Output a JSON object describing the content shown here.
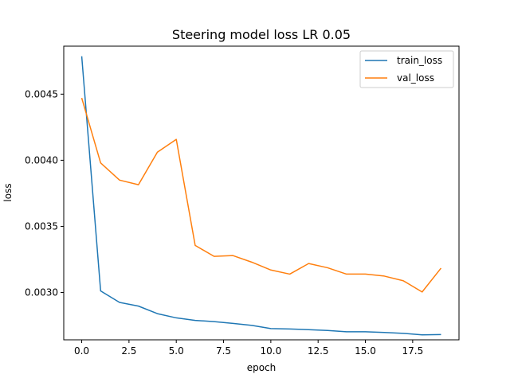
{
  "chart_data": {
    "type": "line",
    "title": "Steering model loss LR 0.05",
    "xlabel": "epoch",
    "ylabel": "loss",
    "xlim": [
      -0.95,
      19.95
    ],
    "ylim": [
      0.002642,
      0.004863
    ],
    "xticks": [
      0.0,
      2.5,
      5.0,
      7.5,
      10.0,
      12.5,
      15.0,
      17.5
    ],
    "xtick_labels": [
      "0.0",
      "2.5",
      "5.0",
      "7.5",
      "10.0",
      "12.5",
      "15.0",
      "17.5"
    ],
    "yticks": [
      0.003,
      0.0035,
      0.004,
      0.0045
    ],
    "ytick_labels": [
      "0.0030",
      "0.0035",
      "0.0040",
      "0.0045"
    ],
    "grid": false,
    "legend_position": "top-right",
    "x": [
      0,
      1,
      2,
      3,
      4,
      5,
      6,
      7,
      8,
      9,
      10,
      11,
      12,
      13,
      14,
      15,
      16,
      17,
      18,
      19
    ],
    "series": [
      {
        "name": "train_loss",
        "color": "#1f77b4",
        "values": [
          0.004787,
          0.003012,
          0.002925,
          0.002897,
          0.00284,
          0.002808,
          0.002789,
          0.00278,
          0.002766,
          0.002751,
          0.002727,
          0.002724,
          0.002719,
          0.002713,
          0.002703,
          0.002703,
          0.002698,
          0.002691,
          0.00268,
          0.002682
        ]
      },
      {
        "name": "val_loss",
        "color": "#ff7f0e",
        "values": [
          0.004471,
          0.00398,
          0.00385,
          0.003815,
          0.004061,
          0.004158,
          0.003356,
          0.003273,
          0.003279,
          0.003229,
          0.00317,
          0.003139,
          0.003219,
          0.003187,
          0.003139,
          0.003139,
          0.003124,
          0.003089,
          0.003004,
          0.003184
        ]
      }
    ]
  }
}
